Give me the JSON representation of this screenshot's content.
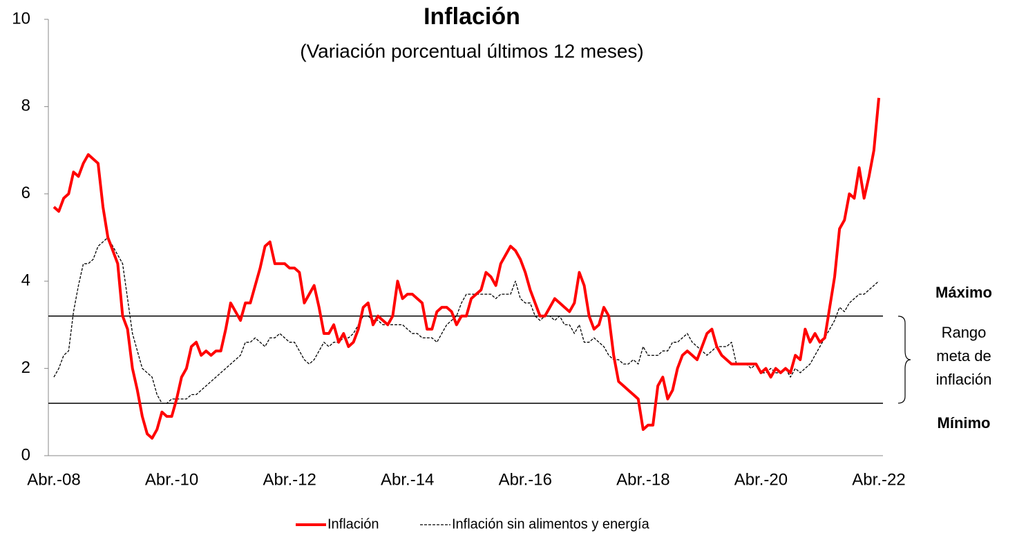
{
  "chart_data": {
    "type": "line",
    "title": "Inflación",
    "subtitle": "(Variación porcentual últimos 12 meses)",
    "categories": [
      "Abr.-08",
      null,
      null,
      null,
      null,
      null,
      null,
      null,
      null,
      null,
      null,
      null,
      null,
      null,
      null,
      null,
      null,
      null,
      null,
      null,
      null,
      null,
      null,
      null,
      "Abr.-10",
      null,
      null,
      null,
      null,
      null,
      null,
      null,
      null,
      null,
      null,
      null,
      null,
      null,
      null,
      null,
      null,
      null,
      null,
      null,
      null,
      null,
      null,
      null,
      "Abr.-12",
      null,
      null,
      null,
      null,
      null,
      null,
      null,
      null,
      null,
      null,
      null,
      null,
      null,
      null,
      null,
      null,
      null,
      null,
      null,
      null,
      null,
      null,
      null,
      "Abr.-14",
      null,
      null,
      null,
      null,
      null,
      null,
      null,
      null,
      null,
      null,
      null,
      null,
      null,
      null,
      null,
      null,
      null,
      null,
      null,
      null,
      null,
      null,
      null,
      "Abr.-16",
      null,
      null,
      null,
      null,
      null,
      null,
      null,
      null,
      null,
      null,
      null,
      null,
      null,
      null,
      null,
      null,
      null,
      null,
      null,
      null,
      null,
      null,
      null,
      "Abr.-18",
      null,
      null,
      null,
      null,
      null,
      null,
      null,
      null,
      null,
      null,
      null,
      null,
      null,
      null,
      null,
      null,
      null,
      null,
      null,
      null,
      null,
      null,
      null,
      "Abr.-20",
      null,
      null,
      null,
      null,
      null,
      null,
      null,
      null,
      null,
      null,
      null,
      null,
      null,
      null,
      null,
      null,
      null,
      null,
      null,
      null,
      null,
      null,
      null,
      "Abr.-22"
    ],
    "series": [
      {
        "name": "Inflación",
        "color": "#ff0000",
        "values": [
          5.7,
          5.6,
          5.9,
          6.0,
          6.5,
          6.4,
          6.7,
          6.9,
          6.8,
          6.7,
          5.7,
          5.0,
          4.7,
          4.4,
          3.2,
          2.9,
          2.0,
          1.5,
          0.9,
          0.5,
          0.4,
          0.6,
          1.0,
          0.9,
          0.9,
          1.3,
          1.8,
          2.0,
          2.5,
          2.6,
          2.3,
          2.4,
          2.3,
          2.4,
          2.4,
          2.9,
          3.5,
          3.3,
          3.1,
          3.5,
          3.5,
          3.9,
          4.3,
          4.8,
          4.9,
          4.4,
          4.4,
          4.4,
          4.3,
          4.3,
          4.2,
          3.5,
          3.7,
          3.9,
          3.4,
          2.8,
          2.8,
          3.0,
          2.6,
          2.8,
          2.5,
          2.6,
          2.9,
          3.4,
          3.5,
          3.0,
          3.2,
          3.1,
          3.0,
          3.2,
          4.0,
          3.6,
          3.7,
          3.7,
          3.6,
          3.5,
          2.9,
          2.9,
          3.3,
          3.4,
          3.4,
          3.3,
          3.0,
          3.2,
          3.2,
          3.6,
          3.7,
          3.8,
          4.2,
          4.1,
          3.9,
          4.4,
          4.6,
          4.8,
          4.7,
          4.5,
          4.2,
          3.8,
          3.5,
          3.2,
          3.2,
          3.4,
          3.6,
          3.5,
          3.4,
          3.3,
          3.5,
          4.2,
          3.9,
          3.2,
          2.9,
          3.0,
          3.4,
          3.2,
          2.3,
          1.7,
          1.6,
          1.5,
          1.4,
          1.3,
          0.6,
          0.7,
          0.7,
          1.6,
          1.8,
          1.3,
          1.5,
          2.0,
          2.3,
          2.4,
          2.3,
          2.2,
          2.5,
          2.8,
          2.9,
          2.5,
          2.3,
          2.2,
          2.1,
          2.1,
          2.1,
          2.1,
          2.1,
          2.1,
          1.9,
          2.0,
          1.8,
          2.0,
          1.9,
          2.0,
          1.9,
          2.3,
          2.2,
          2.9,
          2.6,
          2.8,
          2.6,
          2.7,
          3.4,
          4.1,
          5.2,
          5.4,
          6.0,
          5.9,
          6.6,
          5.9,
          6.4,
          7.0,
          8.2
        ]
      },
      {
        "name": "Inflación sin alimentos y energía",
        "color": "#000000",
        "dashed": true,
        "values": [
          1.8,
          2.0,
          2.3,
          2.4,
          3.3,
          3.9,
          4.4,
          4.4,
          4.5,
          4.8,
          4.9,
          5.0,
          4.8,
          4.6,
          4.4,
          3.6,
          2.8,
          2.4,
          2.0,
          1.9,
          1.8,
          1.4,
          1.2,
          1.2,
          1.3,
          1.3,
          1.3,
          1.3,
          1.4,
          1.4,
          1.5,
          1.6,
          1.7,
          1.8,
          1.9,
          2.0,
          2.1,
          2.2,
          2.3,
          2.6,
          2.6,
          2.7,
          2.6,
          2.5,
          2.7,
          2.7,
          2.8,
          2.7,
          2.6,
          2.6,
          2.4,
          2.2,
          2.1,
          2.2,
          2.4,
          2.6,
          2.5,
          2.6,
          2.6,
          2.7,
          2.7,
          2.8,
          3.0,
          3.2,
          3.2,
          3.1,
          3.1,
          3.0,
          3.0,
          3.0,
          3.0,
          3.0,
          2.9,
          2.8,
          2.8,
          2.7,
          2.7,
          2.7,
          2.6,
          2.8,
          3.0,
          3.1,
          3.2,
          3.5,
          3.7,
          3.7,
          3.7,
          3.7,
          3.7,
          3.7,
          3.6,
          3.7,
          3.7,
          3.7,
          4.0,
          3.6,
          3.5,
          3.5,
          3.2,
          3.1,
          3.2,
          3.2,
          3.1,
          3.2,
          3.0,
          3.0,
          2.8,
          3.0,
          2.6,
          2.6,
          2.7,
          2.6,
          2.5,
          2.3,
          2.2,
          2.2,
          2.1,
          2.1,
          2.2,
          2.1,
          2.5,
          2.3,
          2.3,
          2.3,
          2.4,
          2.4,
          2.6,
          2.6,
          2.7,
          2.8,
          2.6,
          2.5,
          2.4,
          2.3,
          2.4,
          2.5,
          2.5,
          2.5,
          2.6,
          2.1,
          2.1,
          2.1,
          2.0,
          2.1,
          1.9,
          1.9,
          2.0,
          1.9,
          1.9,
          2.0,
          1.8,
          2.0,
          1.9,
          2.0,
          2.1,
          2.3,
          2.5,
          2.7,
          2.9,
          3.1,
          3.4,
          3.3,
          3.5,
          3.6,
          3.7,
          3.7,
          3.8,
          3.9,
          4.0
        ]
      }
    ],
    "ylim": [
      0,
      10
    ],
    "yticks": [
      0,
      2,
      4,
      6,
      8,
      10
    ],
    "reference_lines": [
      3.2,
      1.2
    ],
    "annotations": [
      "Máximo",
      "Rango",
      "meta de",
      "inflación",
      "Mínimo"
    ],
    "legend": "bottom"
  }
}
